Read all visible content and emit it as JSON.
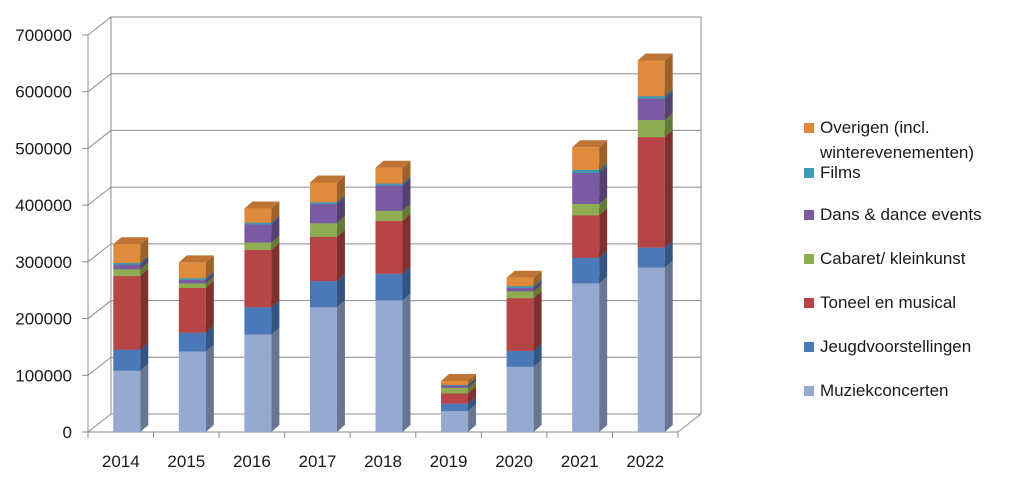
{
  "chart_data": {
    "type": "bar",
    "stacked": true,
    "three_d": true,
    "grid": true,
    "legend_position": "right",
    "title": "",
    "xlabel": "",
    "ylabel": "",
    "ylim": [
      0,
      700000
    ],
    "y_ticks": [
      "0",
      "100000",
      "200000",
      "300000",
      "400000",
      "500000",
      "600000",
      "700000"
    ],
    "categories": [
      "2014",
      "2015",
      "2016",
      "2017",
      "2018",
      "2019",
      "2020",
      "2021",
      "2022"
    ],
    "series": [
      {
        "name": "Muziekconcerten",
        "color": "#95a9d1",
        "values": [
          108000,
          142000,
          172000,
          220000,
          232000,
          37000,
          115000,
          262000,
          290000
        ]
      },
      {
        "name": "Jeugdvoorstellingen",
        "color": "#4a78b8",
        "values": [
          37000,
          33000,
          48000,
          46000,
          47000,
          13000,
          28000,
          45000,
          35000
        ]
      },
      {
        "name": "Toneel en musical",
        "color": "#b84545",
        "values": [
          130000,
          79000,
          101000,
          78000,
          93000,
          18000,
          93000,
          75000,
          195000
        ]
      },
      {
        "name": "Cabaret/ kleinkunst",
        "color": "#8fae52",
        "values": [
          12000,
          8000,
          13000,
          24000,
          18000,
          10000,
          12000,
          20000,
          30000
        ]
      },
      {
        "name": "Dans & dance events",
        "color": "#7a5ba3",
        "values": [
          8000,
          6000,
          32000,
          34000,
          45000,
          4000,
          6000,
          55000,
          38000
        ]
      },
      {
        "name": "Films",
        "color": "#3c9cb6",
        "values": [
          3000,
          3000,
          3000,
          3000,
          3000,
          1000,
          3000,
          5000,
          4000
        ]
      },
      {
        "name": "Overigen (incl. winterevenementen)",
        "color": "#e08a3c",
        "values": [
          33000,
          28000,
          25000,
          35000,
          28000,
          7000,
          15000,
          40000,
          63000
        ]
      }
    ],
    "legend": [
      {
        "lines": [
          "Overigen (incl.",
          "winterevenementen)"
        ],
        "color": "#e08a3c"
      },
      {
        "lines": [
          "Films"
        ],
        "color": "#3c9cb6"
      },
      {
        "lines": [
          "Dans & dance events"
        ],
        "color": "#7a5ba3"
      },
      {
        "lines": [
          "Cabaret/ kleinkunst"
        ],
        "color": "#8fae52"
      },
      {
        "lines": [
          "Toneel en musical"
        ],
        "color": "#b84545"
      },
      {
        "lines": [
          "Jeugdvoorstellingen"
        ],
        "color": "#4a78b8"
      },
      {
        "lines": [
          "Muziekconcerten"
        ],
        "color": "#95a9d1"
      }
    ]
  }
}
